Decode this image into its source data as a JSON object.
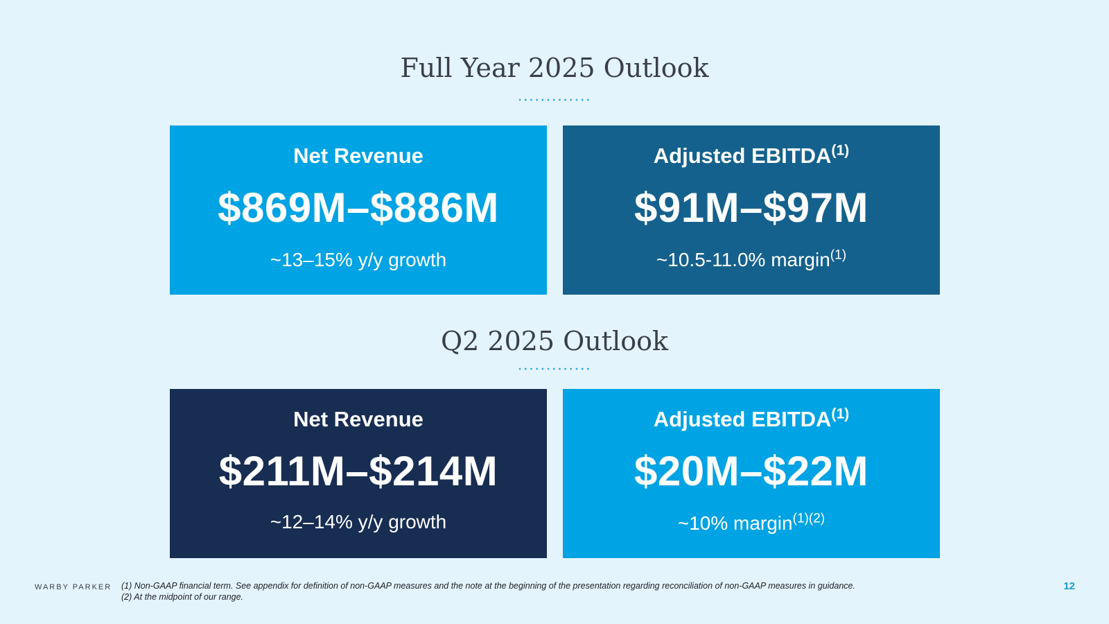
{
  "full_year": {
    "title": "Full Year 2025 Outlook",
    "revenue": {
      "label": "Net Revenue",
      "value": "$869M–$886M",
      "sub": "~13–15% y/y growth"
    },
    "ebitda": {
      "label": "Adjusted EBITDA",
      "label_sup": "(1)",
      "value": "$91M–$97M",
      "sub": "~10.5-11.0% margin",
      "sub_sup": "(1)"
    }
  },
  "q2": {
    "title": "Q2 2025 Outlook",
    "revenue": {
      "label": "Net Revenue",
      "value": "$211M–$214M",
      "sub": "~12–14% y/y growth"
    },
    "ebitda": {
      "label": "Adjusted EBITDA",
      "label_sup": "(1)",
      "value": "$20M–$22M",
      "sub": "~10% margin",
      "sub_sup": "(1)(2)"
    }
  },
  "footer": {
    "logo": "WARBY PARKER",
    "note1": "(1) Non-GAAP financial term. See appendix for definition of non-GAAP measures and the note at the beginning of the presentation regarding reconciliation of non-GAAP measures in guidance.",
    "note2": "(2) At the midpoint of our range.",
    "page": "12"
  },
  "colors": {
    "background": "#e4f4fc",
    "light_blue": "#00a3e3",
    "mid_blue": "#15618d",
    "navy": "#182d52",
    "accent": "#2aa6de"
  }
}
